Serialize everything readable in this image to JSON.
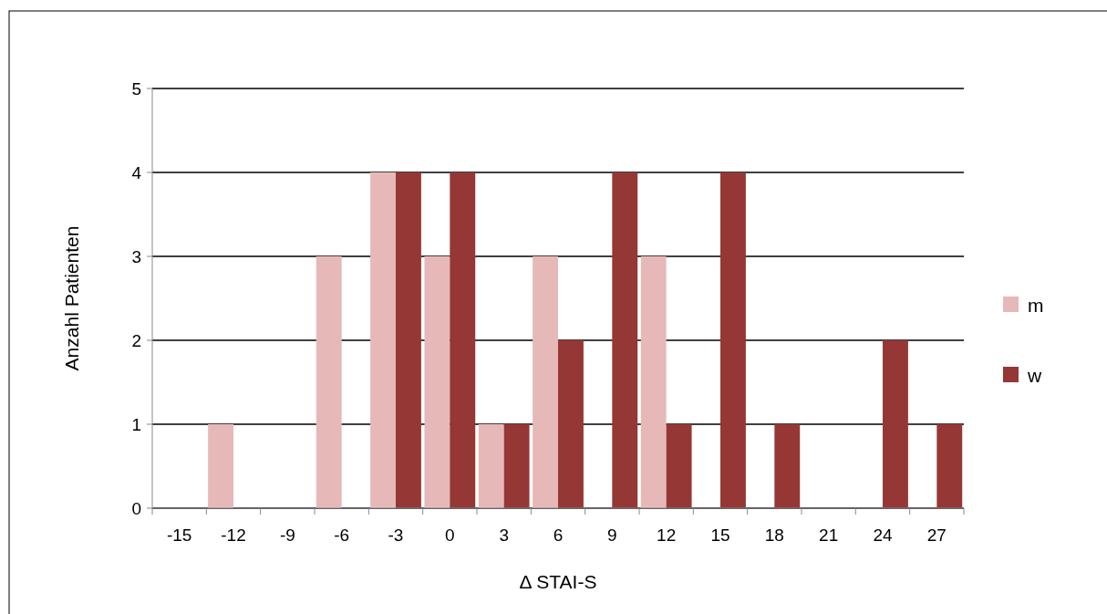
{
  "chart_data": {
    "type": "bar",
    "xlabel": "Δ STAI-S",
    "ylabel": "Anzahl Patienten",
    "categories": [
      "-15",
      "-12",
      "-9",
      "-6",
      "-3",
      "0",
      "3",
      "6",
      "9",
      "12",
      "15",
      "18",
      "21",
      "24",
      "27"
    ],
    "series": [
      {
        "name": "m",
        "color": "#e6b9b8",
        "values": [
          0,
          1,
          0,
          3,
          4,
          3,
          1,
          3,
          0,
          3,
          0,
          0,
          0,
          0,
          0
        ]
      },
      {
        "name": "w",
        "color": "#953735",
        "values": [
          0,
          0,
          0,
          0,
          4,
          4,
          1,
          2,
          4,
          1,
          4,
          1,
          0,
          2,
          1
        ]
      }
    ],
    "ylim": [
      0,
      5
    ],
    "yticks": [
      0,
      1,
      2,
      3,
      4,
      5
    ],
    "grid": "y",
    "legend": "right"
  }
}
